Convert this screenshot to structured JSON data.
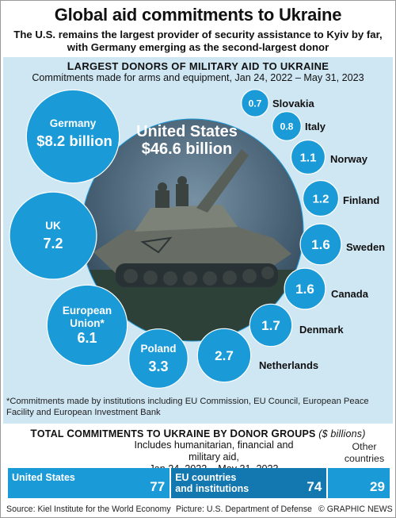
{
  "header": {
    "title": "Global aid commitments to Ukraine",
    "subtitle": "The U.S. remains the largest provider of security assistance to Kyiv by far, with Germany emerging as the second-largest donor"
  },
  "military_panel": {
    "heading_first": "L",
    "heading_rest": "ARGEST DONORS OF MILITARY AID TO UKRAINE",
    "subheading": "Commitments made for arms and equipment, Jan 24, 2022 – May 31, 2023",
    "footnote": "*Commitments made by institutions including EU Commission, EU Council, European Peace Facility and European Investment Bank",
    "picture_icon": "tank-photo"
  },
  "totals_panel": {
    "heading_t": "T",
    "heading_rest_1": "OTAL ",
    "heading_c": "C",
    "heading_rest_2": "OMMITMENTS TO ",
    "heading_u": "U",
    "heading_rest_3": "KRAINE BY ",
    "heading_d": "D",
    "heading_rest_4": "ONOR ",
    "heading_g": "G",
    "heading_rest_5": "ROUPS",
    "unit": "($ billions)",
    "sub_line1": "Includes humanitarian, financial and military aid,",
    "sub_line2": "Jan 24, 2022 – May 31, 2023",
    "other_label_line1": "Other",
    "other_label_line2": "countries"
  },
  "colors": {
    "bubble": "#1b9ad8",
    "panel": "#cfe6f3",
    "bar_us": "#1b9ad8",
    "bar_eu": "#1478b0",
    "bar_other": "#1b9ad8"
  },
  "chart_data": [
    {
      "type": "bubble",
      "title": "Largest Donors of Military Aid to Ukraine",
      "unit": "$ billion",
      "points": [
        {
          "name": "United States",
          "value": 46.6,
          "label_line1": "United States",
          "label_line2": "$46.6 billion"
        },
        {
          "name": "Germany",
          "value": 8.2,
          "label_line1": "Germany",
          "label_line2": "$8.2 billion"
        },
        {
          "name": "UK",
          "value": 7.2,
          "label_line1": "UK",
          "label_line2": "7.2"
        },
        {
          "name": "European Union*",
          "value": 6.1,
          "label_line1": "European",
          "label_line2": "Union*",
          "label_line3": "6.1"
        },
        {
          "name": "Poland",
          "value": 3.3,
          "label_line1": "Poland",
          "label_line2": "3.3"
        },
        {
          "name": "Netherlands",
          "value": 2.7,
          "label": "Netherlands",
          "value_label": "2.7"
        },
        {
          "name": "Denmark",
          "value": 1.7,
          "label": "Denmark",
          "value_label": "1.7"
        },
        {
          "name": "Canada",
          "value": 1.6,
          "label": "Canada",
          "value_label": "1.6"
        },
        {
          "name": "Sweden",
          "value": 1.6,
          "label": "Sweden",
          "value_label": "1.6"
        },
        {
          "name": "Finland",
          "value": 1.2,
          "label": "Finland",
          "value_label": "1.2"
        },
        {
          "name": "Norway",
          "value": 1.1,
          "label": "Norway",
          "value_label": "1.1"
        },
        {
          "name": "Italy",
          "value": 0.8,
          "label": "Italy",
          "value_label": "0.8"
        },
        {
          "name": "Slovakia",
          "value": 0.7,
          "label": "Slovakia",
          "value_label": "0.7"
        }
      ]
    },
    {
      "type": "bar",
      "title": "Total Commitments to Ukraine by Donor Groups",
      "unit": "$ billions",
      "stacked": true,
      "categories": [
        "United States",
        "EU countries and institutions",
        "Other countries"
      ],
      "values": [
        77,
        74,
        29
      ],
      "labels": [
        {
          "line1": "United States",
          "line2": ""
        },
        {
          "line1": "EU countries",
          "line2": "and institutions"
        },
        {
          "line1": "",
          "line2": ""
        }
      ]
    }
  ],
  "footer": {
    "source": "Source: Kiel Institute for the World Economy",
    "picture": "Picture: U.S. Department of Defense",
    "credit": "© GRAPHIC NEWS"
  }
}
